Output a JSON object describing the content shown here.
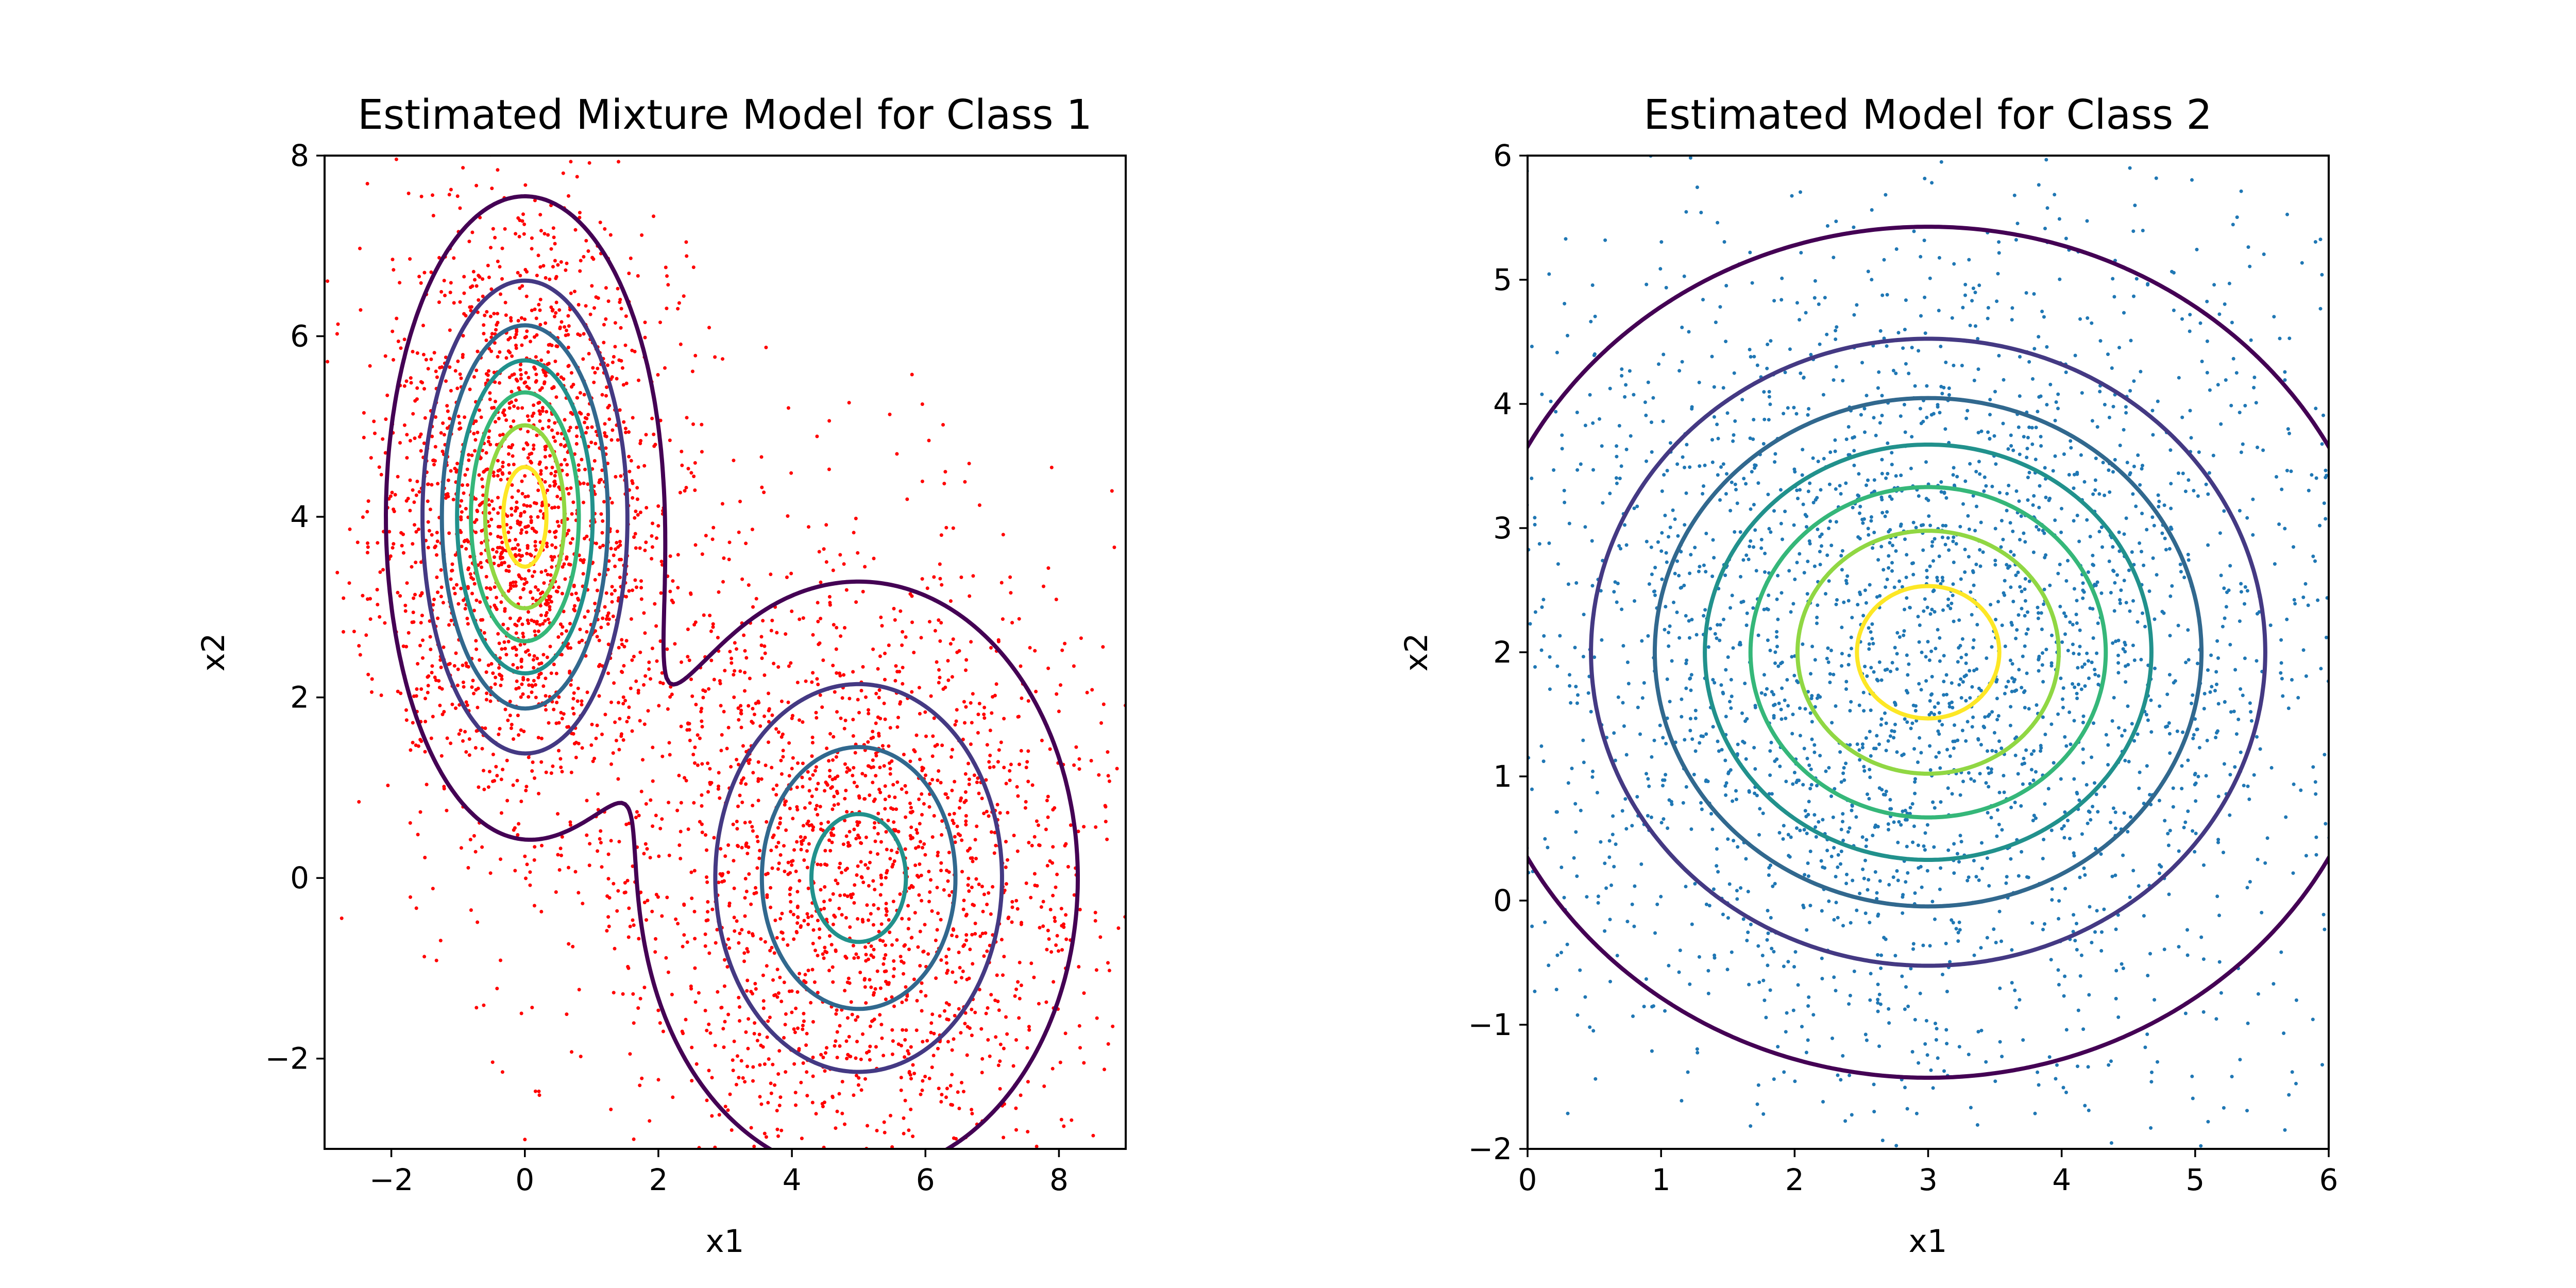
{
  "chart_data": [
    {
      "type": "scatter",
      "title": "Estimated Mixture Model for Class 1",
      "xlabel": "x1",
      "ylabel": "x2",
      "xlim": [
        -3,
        9
      ],
      "ylim": [
        -3,
        8
      ],
      "xticks": [
        -2,
        0,
        2,
        4,
        6,
        8
      ],
      "yticks": [
        -2,
        0,
        2,
        4,
        6,
        8
      ],
      "xtick_labels": [
        "−2",
        "0",
        "2",
        "4",
        "6",
        "8"
      ],
      "ytick_labels": [
        "−2",
        "0",
        "2",
        "4",
        "6",
        "8"
      ],
      "grid": false,
      "point_color": "#ff0000",
      "point_count_approx": 4000,
      "components": [
        {
          "mean": [
            0.0,
            4.0
          ],
          "std": [
            0.85,
            1.45
          ],
          "weight": 0.5
        },
        {
          "mean": [
            5.0,
            0.0
          ],
          "std": [
            1.5,
            1.5
          ],
          "weight": 0.5
        }
      ],
      "contours": {
        "overlay": "mixture-density",
        "levels": 7,
        "colormap": [
          "#440154",
          "#443983",
          "#31688e",
          "#21918c",
          "#35b779",
          "#90d743",
          "#fde725"
        ]
      }
    },
    {
      "type": "scatter",
      "title": "Estimated Model for Class 2",
      "xlabel": "x1",
      "ylabel": "x2",
      "xlim": [
        0,
        6
      ],
      "ylim": [
        -2,
        6
      ],
      "xticks": [
        0,
        1,
        2,
        3,
        4,
        5,
        6
      ],
      "yticks": [
        -2,
        -1,
        0,
        1,
        2,
        3,
        4,
        5,
        6
      ],
      "xtick_labels": [
        "0",
        "1",
        "2",
        "3",
        "4",
        "5",
        "6"
      ],
      "ytick_labels": [
        "−2",
        "−1",
        "0",
        "1",
        "2",
        "3",
        "4",
        "5",
        "6"
      ],
      "grid": false,
      "point_color": "#1f77b4",
      "point_count_approx": 3000,
      "components": [
        {
          "mean": [
            3.0,
            2.0
          ],
          "std": [
            1.4,
            1.4
          ],
          "weight": 1.0
        }
      ],
      "contours": {
        "overlay": "gaussian-density",
        "levels": 7,
        "colormap": [
          "#440154",
          "#443983",
          "#31688e",
          "#21918c",
          "#35b779",
          "#90d743",
          "#fde725"
        ]
      }
    }
  ]
}
